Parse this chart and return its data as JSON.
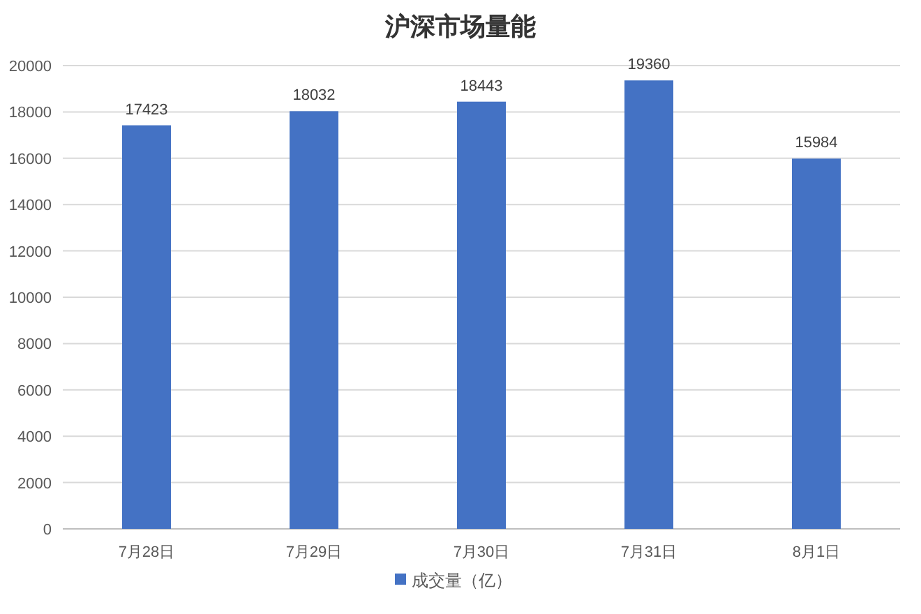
{
  "chart_data": {
    "type": "bar",
    "title": "沪深市场量能",
    "categories": [
      "7月28日",
      "7月29日",
      "7月30日",
      "7月31日",
      "8月1日"
    ],
    "series": [
      {
        "name": "成交量（亿）",
        "color": "#4472c4",
        "values": [
          17423,
          18032,
          18443,
          19360,
          15984
        ]
      }
    ],
    "ylim": [
      0,
      20000
    ],
    "yticks": [
      0,
      2000,
      4000,
      6000,
      8000,
      10000,
      12000,
      14000,
      16000,
      18000,
      20000
    ],
    "grid": "y",
    "data_labels": true,
    "legend": "bottom"
  }
}
